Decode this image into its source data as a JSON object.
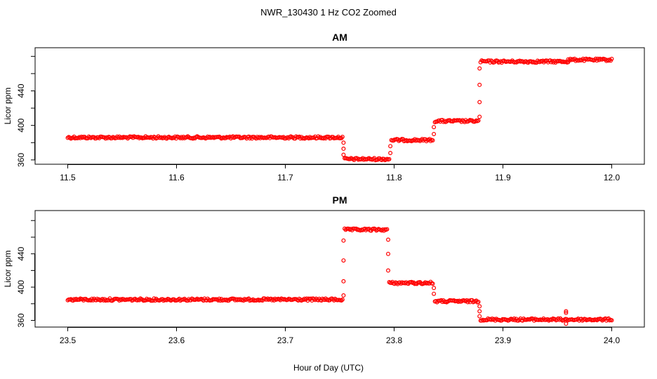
{
  "chart_data": {
    "title": "NWR_130430  1 Hz CO2 Zoomed",
    "xlabel": "Hour of Day (UTC)",
    "marker_color": "#ff0000",
    "panels": [
      {
        "type": "scatter",
        "title": "AM",
        "ylabel": "Licor ppm",
        "xlim": [
          11.47,
          12.03
        ],
        "ylim": [
          355,
          490
        ],
        "xticks": [
          "11.5",
          "11.6",
          "11.7",
          "11.8",
          "11.9",
          "12.0"
        ],
        "yticks": [
          "360",
          "400",
          "440"
        ],
        "segments": [
          {
            "x0": 11.5,
            "x1": 11.7525,
            "y": 386
          },
          {
            "x0": 11.7545,
            "x1": 11.7955,
            "y": 361
          },
          {
            "x0": 11.7975,
            "x1": 11.8355,
            "y": 383
          },
          {
            "x0": 11.8375,
            "x1": 11.8775,
            "y": 405
          },
          {
            "x0": 11.8795,
            "x1": 11.96,
            "y": 474
          },
          {
            "x0": 11.96,
            "x1": 12.0,
            "y": 476
          }
        ],
        "transitions": [
          {
            "x": 11.7535,
            "y": [
              380,
              373,
              366
            ]
          },
          {
            "x": 11.7965,
            "y": [
              368,
              376
            ]
          },
          {
            "x": 11.8365,
            "y": [
              390,
              398
            ]
          },
          {
            "x": 11.8785,
            "y": [
              410,
              427,
              447,
              466
            ]
          }
        ]
      },
      {
        "type": "scatter",
        "title": "PM",
        "ylabel": "Licor ppm",
        "xlim": [
          23.47,
          24.03
        ],
        "ylim": [
          352,
          492
        ],
        "xticks": [
          "23.5",
          "23.6",
          "23.7",
          "23.8",
          "23.9",
          "24.0"
        ],
        "yticks": [
          "360",
          "400",
          "440"
        ],
        "segments": [
          {
            "x0": 23.5,
            "x1": 23.7525,
            "y": 385
          },
          {
            "x0": 23.7545,
            "x1": 23.7935,
            "y": 469
          },
          {
            "x0": 23.7955,
            "x1": 23.8355,
            "y": 405
          },
          {
            "x0": 23.8375,
            "x1": 23.8775,
            "y": 383
          },
          {
            "x0": 23.8795,
            "x1": 24.0,
            "y": 361
          }
        ],
        "transitions": [
          {
            "x": 23.7535,
            "y": [
              390,
              407,
              432,
              456
            ]
          },
          {
            "x": 23.7945,
            "y": [
              457,
              440,
              420
            ]
          },
          {
            "x": 23.8365,
            "y": [
              399,
              392
            ]
          },
          {
            "x": 23.8785,
            "y": [
              377,
              371,
              365
            ]
          },
          {
            "x": 23.958,
            "y": [
              371,
              369,
              356
            ]
          }
        ]
      }
    ]
  }
}
